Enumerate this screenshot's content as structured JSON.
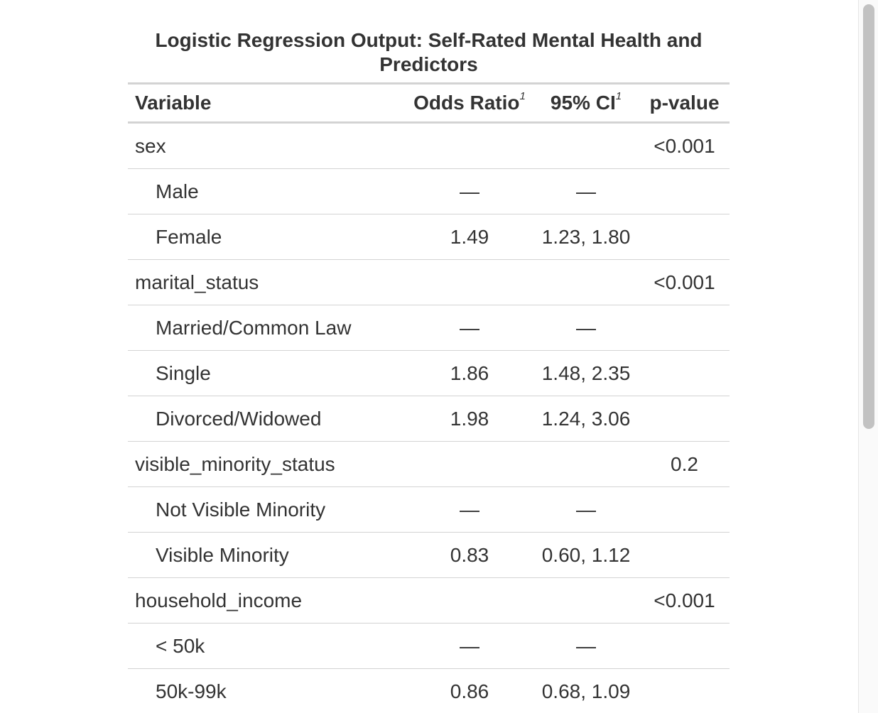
{
  "table": {
    "title": "Logistic Regression Output: Self-Rated Mental Health and Predictors",
    "headers": {
      "variable": "Variable",
      "odds_ratio": "Odds Ratio",
      "odds_ratio_footnote": "1",
      "ci": "95% CI",
      "ci_footnote": "1",
      "p_value": "p-value"
    },
    "rows": [
      {
        "label": "sex",
        "level": false,
        "or": "",
        "ci": "",
        "p": "<0.001"
      },
      {
        "label": "Male",
        "level": true,
        "or": "—",
        "ci": "—",
        "p": ""
      },
      {
        "label": "Female",
        "level": true,
        "or": "1.49",
        "ci": "1.23, 1.80",
        "p": ""
      },
      {
        "label": "marital_status",
        "level": false,
        "or": "",
        "ci": "",
        "p": "<0.001"
      },
      {
        "label": "Married/Common Law",
        "level": true,
        "or": "—",
        "ci": "—",
        "p": ""
      },
      {
        "label": "Single",
        "level": true,
        "or": "1.86",
        "ci": "1.48, 2.35",
        "p": ""
      },
      {
        "label": "Divorced/Widowed",
        "level": true,
        "or": "1.98",
        "ci": "1.24, 3.06",
        "p": ""
      },
      {
        "label": "visible_minority_status",
        "level": false,
        "or": "",
        "ci": "",
        "p": "0.2"
      },
      {
        "label": "Not Visible Minority",
        "level": true,
        "or": "—",
        "ci": "—",
        "p": ""
      },
      {
        "label": "Visible Minority",
        "level": true,
        "or": "0.83",
        "ci": "0.60, 1.12",
        "p": ""
      },
      {
        "label": "household_income",
        "level": false,
        "or": "",
        "ci": "",
        "p": "<0.001"
      },
      {
        "label": "< 50k",
        "level": true,
        "or": "—",
        "ci": "—",
        "p": ""
      },
      {
        "label": "50k-99k",
        "level": true,
        "or": "0.86",
        "ci": "0.68, 1.09",
        "p": ""
      }
    ]
  },
  "colors": {
    "text": "#333333",
    "rule": "#d3d3d3",
    "scroll_thumb": "#c2c2c2"
  }
}
